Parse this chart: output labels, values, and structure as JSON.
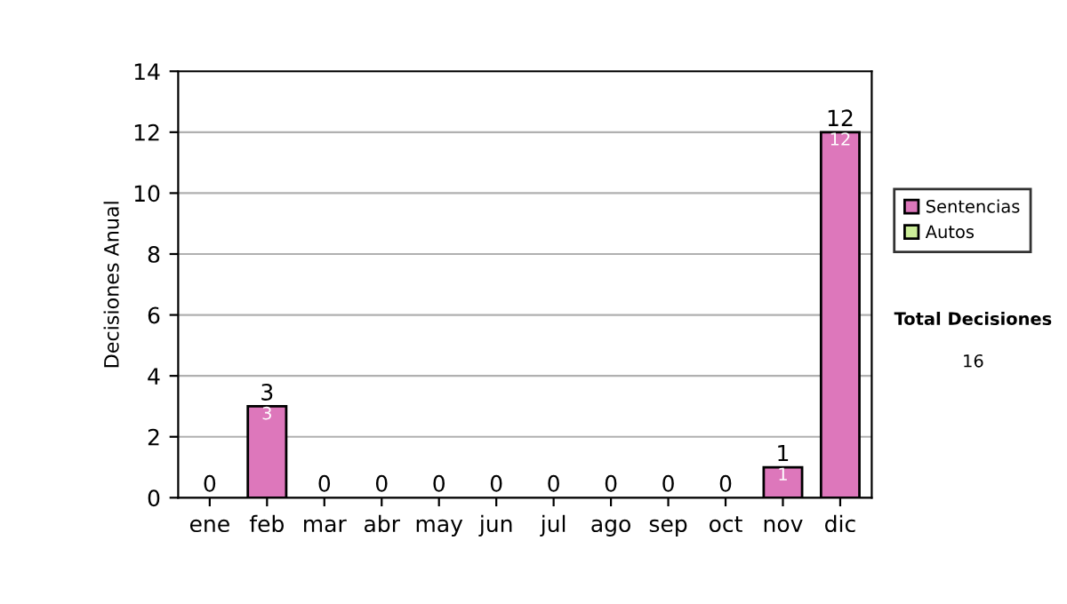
{
  "chart_data": {
    "type": "bar",
    "ylabel": "Decisiones Anual",
    "categories": [
      "ene",
      "feb",
      "mar",
      "abr",
      "may",
      "jun",
      "jul",
      "ago",
      "sep",
      "oct",
      "nov",
      "dic"
    ],
    "series": [
      {
        "name": "Sentencias",
        "color": "#dd77bb",
        "values": [
          0,
          3,
          0,
          0,
          0,
          0,
          0,
          0,
          0,
          0,
          1,
          12
        ],
        "value_labels": [
          null,
          "3",
          null,
          null,
          null,
          null,
          null,
          null,
          null,
          null,
          "1",
          "12"
        ]
      },
      {
        "name": "Autos",
        "color": "#ccee99",
        "values": [
          0,
          0,
          0,
          0,
          0,
          0,
          0,
          0,
          0,
          0,
          0,
          0
        ]
      }
    ],
    "stacked": true,
    "totals": [
      "0",
      "3",
      "0",
      "0",
      "0",
      "0",
      "0",
      "0",
      "0",
      "0",
      "1",
      "12"
    ],
    "ylim": [
      0,
      14
    ],
    "yticks": [
      0,
      2,
      4,
      6,
      8,
      10,
      12,
      14
    ],
    "grid": "y",
    "legend": "right",
    "annotations": [
      "Total Decisiones",
      "16"
    ]
  }
}
